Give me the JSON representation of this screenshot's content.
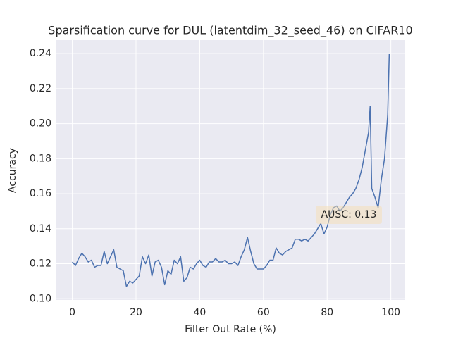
{
  "chart_data": {
    "type": "line",
    "title": "Sparsification curve for DUL (latentdim_32_seed_46) on CIFAR10",
    "x_label": "Filter Out Rate (%)",
    "y_label": "Accuracy",
    "annotation": "AUSC: 0.13",
    "x": [
      0,
      1,
      2,
      3,
      4,
      5,
      6,
      7,
      8,
      9,
      10,
      11,
      12,
      13,
      14,
      15,
      16,
      17,
      18,
      19,
      20,
      21,
      22,
      23,
      24,
      25,
      26,
      27,
      28,
      29,
      30,
      31,
      32,
      33,
      34,
      35,
      36,
      37,
      38,
      39,
      40,
      41,
      42,
      43,
      44,
      45,
      46,
      47,
      48,
      49,
      50,
      51,
      52,
      53,
      54,
      55,
      56,
      57,
      58,
      59,
      60,
      61,
      62,
      63,
      64,
      65,
      66,
      67,
      68,
      69,
      70,
      71,
      72,
      73,
      74,
      75,
      76,
      77,
      78,
      79,
      80,
      81,
      82,
      83,
      84,
      85,
      86,
      87,
      88,
      89,
      90,
      91,
      92,
      93,
      93.5,
      94,
      95,
      96,
      97,
      98,
      99,
      99.5
    ],
    "series": [
      {
        "name": "DUL",
        "color": "#4c72b0",
        "values": [
          0.121,
          0.119,
          0.123,
          0.126,
          0.124,
          0.121,
          0.122,
          0.118,
          0.119,
          0.119,
          0.127,
          0.12,
          0.124,
          0.128,
          0.118,
          0.117,
          0.116,
          0.107,
          0.11,
          0.109,
          0.111,
          0.113,
          0.124,
          0.12,
          0.125,
          0.113,
          0.121,
          0.122,
          0.118,
          0.108,
          0.116,
          0.114,
          0.122,
          0.12,
          0.124,
          0.11,
          0.112,
          0.118,
          0.117,
          0.12,
          0.122,
          0.119,
          0.118,
          0.121,
          0.121,
          0.123,
          0.121,
          0.121,
          0.122,
          0.12,
          0.12,
          0.121,
          0.119,
          0.124,
          0.128,
          0.135,
          0.127,
          0.12,
          0.117,
          0.117,
          0.117,
          0.119,
          0.122,
          0.122,
          0.129,
          0.126,
          0.125,
          0.127,
          0.128,
          0.129,
          0.134,
          0.134,
          0.133,
          0.134,
          0.133,
          0.135,
          0.137,
          0.14,
          0.143,
          0.137,
          0.141,
          0.148,
          0.152,
          0.153,
          0.15,
          0.152,
          0.155,
          0.158,
          0.16,
          0.163,
          0.168,
          0.175,
          0.185,
          0.195,
          0.21,
          0.163,
          0.158,
          0.152,
          0.168,
          0.18,
          0.205,
          0.24
        ]
      }
    ],
    "xlim": [
      -5,
      104.5
    ],
    "ylim": [
      0.0993,
      0.2477
    ],
    "xticks": [
      0,
      20,
      40,
      60,
      80,
      100
    ],
    "yticks": [
      {
        "value": 0.1,
        "label": "0.10"
      },
      {
        "value": 0.12,
        "label": "0.12"
      },
      {
        "value": 0.14,
        "label": "0.14"
      },
      {
        "value": 0.16,
        "label": "0.16"
      },
      {
        "value": 0.18,
        "label": "0.18"
      },
      {
        "value": 0.2,
        "label": "0.20"
      },
      {
        "value": 0.22,
        "label": "0.22"
      },
      {
        "value": 0.24,
        "label": "0.24"
      }
    ],
    "grid": true
  }
}
